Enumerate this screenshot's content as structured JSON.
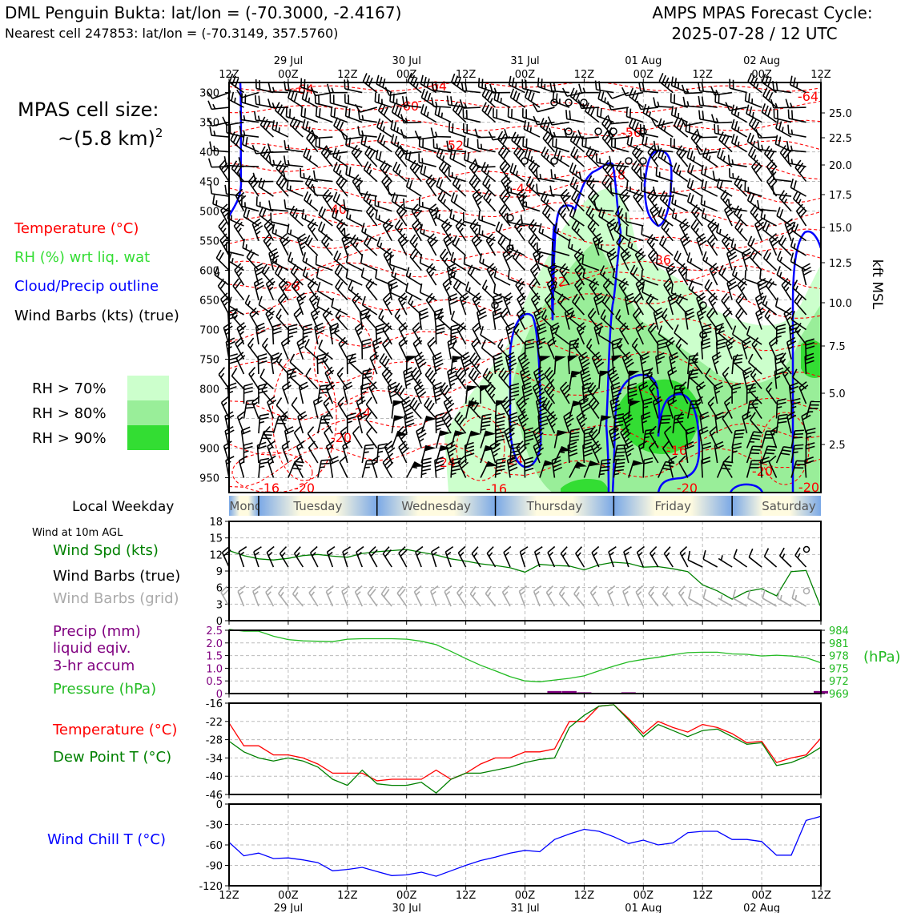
{
  "header": {
    "station_title": "DML Penguin Bukta: lat/lon = (-70.3000, -2.4167)",
    "nearest_cell": "Nearest cell 247853: lat/lon = (-70.3149, 357.5760)",
    "forecast_label": "AMPS MPAS Forecast Cycle:",
    "forecast_cycle": "2025-07-28 / 12 UTC"
  },
  "cell_size": {
    "line1": "MPAS cell size:",
    "line2": "~(5.8 km)",
    "exponent": "2"
  },
  "colors": {
    "temperature": "#ff0000",
    "rh_label": "#33dd33",
    "cloud": "#0000ff",
    "rh70": "#ccffcc",
    "rh80": "#99ee99",
    "rh90": "#33dd33",
    "windspd": "#008000",
    "pressure": "#22bb22",
    "precip": "#800080",
    "dewpoint": "#008000",
    "windchill": "#0000ff",
    "grid_barb": "#aaaaaa"
  },
  "legend": {
    "temperature": "Temperature (°C)",
    "rh": "RH (%) wrt liq. wat",
    "cloud": "Cloud/Precip outline",
    "windbarbs": "Wind Barbs (kts) (true)",
    "rh70": "RH > 70%",
    "rh80": "RH > 80%",
    "rh90": "RH > 90%"
  },
  "time_axis": {
    "tick_labels": [
      "12Z",
      "00Z",
      "12Z",
      "00Z",
      "12Z",
      "00Z",
      "12Z",
      "00Z",
      "12Z",
      "00Z",
      "12Z"
    ],
    "date_labels": [
      "29 Jul",
      "30 Jul",
      "31 Jul",
      "01 Aug",
      "02 Aug"
    ]
  },
  "weekday": {
    "label": "Local Weekday",
    "days": [
      "Monday",
      "Tuesday",
      "Wednesday",
      "Thursday",
      "Friday",
      "Saturday"
    ]
  },
  "profile": {
    "pressure_ticks": [
      "300",
      "350",
      "400",
      "450",
      "500",
      "550",
      "600",
      "650",
      "700",
      "750",
      "800",
      "850",
      "900",
      "950"
    ],
    "height_ticks": [
      "25.0",
      "22.5",
      "20.0",
      "17.5",
      "15.0",
      "12.5",
      "10.0",
      "7.5",
      "5.0",
      "2.5"
    ],
    "height_axis_label": "kft MSL",
    "temp_contour_labels": [
      "-64",
      "-64",
      "-60",
      "-64",
      "-56",
      "-52",
      "-48",
      "-44",
      "-40",
      "-36",
      "-32",
      "-28",
      "-24",
      "-20",
      "-24",
      "-20",
      "-16",
      "-20",
      "-16",
      "-20",
      "-16",
      "-20",
      "-24"
    ]
  },
  "panel_wind": {
    "subtitle": "Wind at 10m AGL",
    "label_speed": "Wind Spd (kts)",
    "label_barbs": "Wind Barbs (true)",
    "label_grid": "Wind Barbs (grid)",
    "y_ticks": [
      "0",
      "3",
      "6",
      "9",
      "12",
      "15",
      "18"
    ]
  },
  "panel_precip": {
    "label1": "Precip (mm)",
    "label2": "liquid eqiv.",
    "label3": "3-hr accum",
    "label_pressure": "Pressure (hPa)",
    "precip_ticks": [
      "0",
      "0.5",
      "1.0",
      "1.5",
      "2.0",
      "2.5"
    ],
    "pressure_ticks": [
      "969",
      "972",
      "975",
      "978",
      "981",
      "984"
    ],
    "pressure_unit": "(hPa)"
  },
  "panel_temp": {
    "label_temp": "Temperature (°C)",
    "label_dew": "Dew Point T (°C)",
    "y_ticks": [
      "-16",
      "-22",
      "-28",
      "-34",
      "-40",
      "-46"
    ]
  },
  "panel_chill": {
    "label": "Wind Chill T (°C)",
    "y_ticks": [
      "0",
      "-30",
      "-60",
      "-90",
      "-120"
    ]
  },
  "chart_data": [
    {
      "type": "line",
      "title": "Wind at 10m AGL",
      "x": [
        "12Z 28 Jul",
        "15Z",
        "18Z",
        "21Z",
        "00Z 29 Jul",
        "03Z",
        "06Z",
        "09Z",
        "12Z",
        "15Z",
        "18Z",
        "21Z",
        "00Z 30 Jul",
        "03Z",
        "06Z",
        "09Z",
        "12Z",
        "15Z",
        "18Z",
        "21Z",
        "00Z 31 Jul",
        "03Z",
        "06Z",
        "09Z",
        "12Z",
        "15Z",
        "18Z",
        "21Z",
        "00Z 01 Aug",
        "03Z",
        "06Z",
        "09Z",
        "12Z",
        "15Z",
        "18Z",
        "21Z",
        "00Z 02 Aug",
        "03Z",
        "06Z",
        "09Z",
        "12Z"
      ],
      "series": [
        {
          "name": "Wind Spd (kts)",
          "values": [
            12.7,
            11.8,
            11.2,
            11.0,
            11.3,
            11.8,
            12.0,
            11.7,
            11.5,
            12.2,
            12.5,
            12.7,
            12.9,
            12.4,
            11.9,
            11.2,
            10.8,
            10.3,
            10.0,
            9.6,
            8.8,
            10.2,
            10.0,
            9.9,
            9.2,
            10.1,
            10.6,
            10.4,
            9.7,
            9.8,
            9.4,
            8.9,
            6.5,
            5.4,
            3.9,
            5.3,
            5.8,
            4.5,
            8.9,
            9.1,
            2.4
          ]
        }
      ],
      "ylabel": "Wind Spd (kts)",
      "ylim": [
        0,
        18
      ]
    },
    {
      "type": "line",
      "title": "Pressure and Precip",
      "series": [
        {
          "name": "Pressure (hPa)",
          "values": [
            984.2,
            983.8,
            983.8,
            982.6,
            981.8,
            981.5,
            981.4,
            981.3,
            981.9,
            982.0,
            982.0,
            982.0,
            981.9,
            981.4,
            980.6,
            979.0,
            977.3,
            975.7,
            974.4,
            973.0,
            972.0,
            971.8,
            972.2,
            972.6,
            973.2,
            974.4,
            975.5,
            976.5,
            977.1,
            977.6,
            978.2,
            978.7,
            978.8,
            978.8,
            978.4,
            978.3,
            977.9,
            978.1,
            977.9,
            977.5,
            976.3
          ]
        },
        {
          "name": "Precip (mm)",
          "values": [
            0,
            0,
            0,
            0,
            0,
            0,
            0,
            0,
            0,
            0,
            0,
            0,
            0,
            0,
            0,
            0,
            0,
            0,
            0,
            0,
            0,
            0,
            0.1,
            0.1,
            0.05,
            0,
            0,
            0.05,
            0,
            0,
            0,
            0,
            0,
            0,
            0,
            0,
            0,
            0,
            0,
            0,
            0.1
          ]
        }
      ],
      "ylim_pressure": [
        969,
        984
      ],
      "ylim_precip": [
        0,
        2.5
      ]
    },
    {
      "type": "line",
      "title": "Temperature and Dew Point",
      "series": [
        {
          "name": "Temperature (°C)",
          "values": [
            -22.5,
            -30,
            -30,
            -33,
            -33,
            -34,
            -36,
            -39,
            -39,
            -39,
            -41.5,
            -41,
            -41,
            -41,
            -38,
            -41,
            -39,
            -36,
            -34,
            -34,
            -32,
            -32,
            -31,
            -22,
            -22,
            -17,
            -16.5,
            -21,
            -26,
            -22,
            -24,
            -25.5,
            -23,
            -24,
            -26,
            -29,
            -28.5,
            -35.5,
            -34,
            -33,
            -27.5
          ]
        },
        {
          "name": "Dew Point T (°C)",
          "values": [
            -28.5,
            -32,
            -34,
            -35,
            -34,
            -35,
            -37,
            -41,
            -43,
            -38,
            -42.5,
            -43,
            -43,
            -42,
            -45.5,
            -41,
            -39,
            -39,
            -38,
            -37,
            -35.5,
            -34.5,
            -34,
            -24,
            -20,
            -17,
            -16.5,
            -21.5,
            -27,
            -23,
            -25,
            -27,
            -25,
            -24.5,
            -27,
            -29.5,
            -29,
            -36.5,
            -35.5,
            -33.5,
            -30.5
          ]
        }
      ],
      "ylim": [
        -46,
        -16
      ]
    },
    {
      "type": "line",
      "title": "Wind Chill T",
      "series": [
        {
          "name": "Wind Chill T (°C)",
          "values": [
            -56,
            -76,
            -72,
            -80,
            -79,
            -82,
            -86,
            -98,
            -96,
            -93,
            -99,
            -105,
            -104,
            -100,
            -106,
            -98,
            -90,
            -83,
            -78,
            -72,
            -68,
            -70,
            -52,
            -44,
            -37,
            -40,
            -48,
            -58,
            -53,
            -60,
            -57,
            -42,
            -40,
            -40,
            -52,
            -52,
            -55,
            -75,
            -75,
            -24,
            -18
          ]
        }
      ],
      "ylim": [
        -120,
        0
      ]
    }
  ]
}
